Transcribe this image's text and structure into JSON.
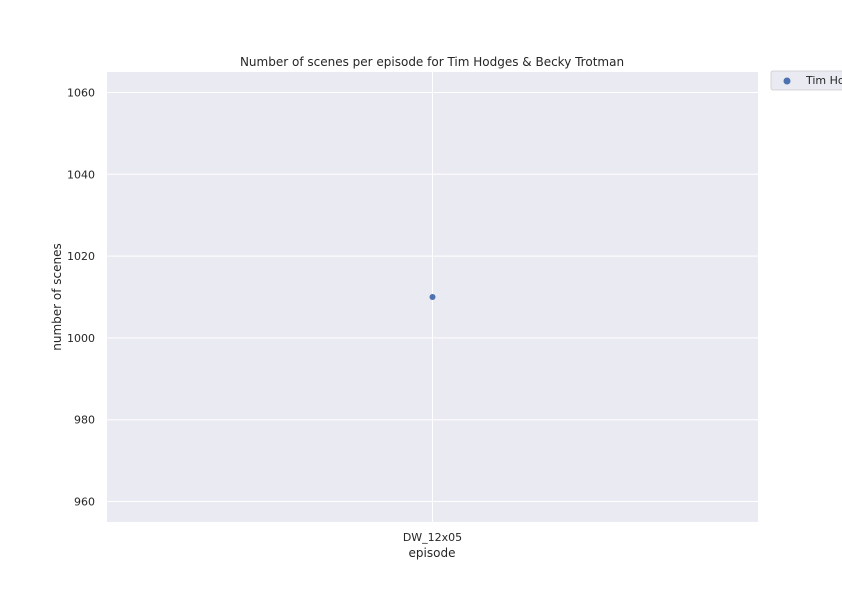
{
  "chart_data": {
    "type": "scatter",
    "title": "Number of scenes per episode for Tim Hodges & Becky Trotman",
    "xlabel": "episode",
    "ylabel": "number of scenes",
    "categories": [
      "DW_12x05"
    ],
    "series": [
      {
        "name": "Tim Hodges & Becky Trotman",
        "x": [
          "DW_12x05"
        ],
        "values": [
          1010
        ],
        "color": "#4c72b0"
      }
    ],
    "ylim": [
      955,
      1065
    ],
    "yticks": [
      960,
      980,
      1000,
      1020,
      1040,
      1060
    ],
    "grid": true,
    "legend_position": "outside-top-right",
    "colors": {
      "plot_background": "#eaeaf2",
      "grid": "#ffffff",
      "marker": "#4c72b0"
    }
  }
}
